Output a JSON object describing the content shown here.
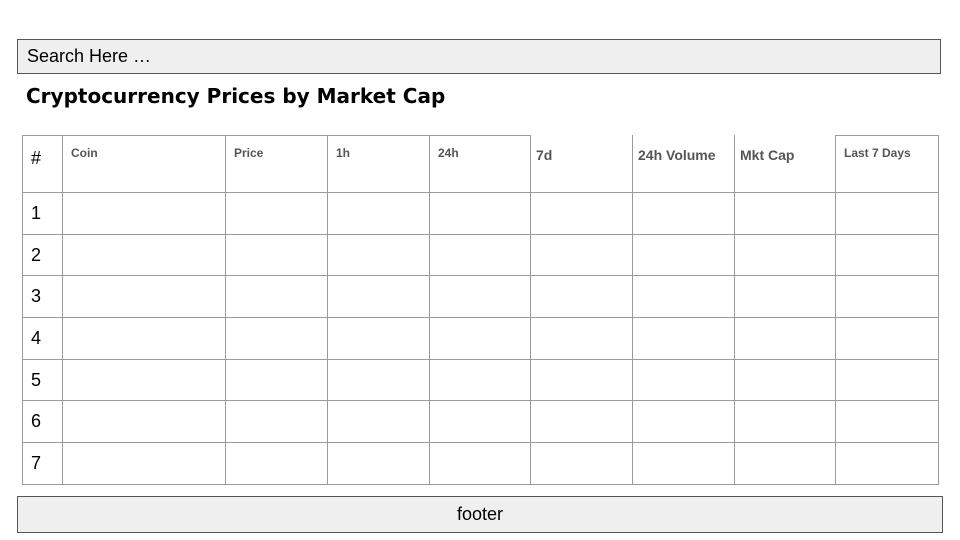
{
  "search": {
    "placeholder": "Search Here …"
  },
  "page": {
    "title": "Cryptocurrency Prices by Market Cap"
  },
  "table": {
    "columns": [
      "#",
      "Coin",
      "Price",
      "1h",
      "24h",
      "7d",
      "24h Volume",
      "Mkt Cap",
      "Last 7 Days"
    ],
    "rows": [
      {
        "rank": "1"
      },
      {
        "rank": "2"
      },
      {
        "rank": "3"
      },
      {
        "rank": "4"
      },
      {
        "rank": "5"
      },
      {
        "rank": "6"
      },
      {
        "rank": "7"
      }
    ]
  },
  "footer": {
    "label": "footer"
  }
}
